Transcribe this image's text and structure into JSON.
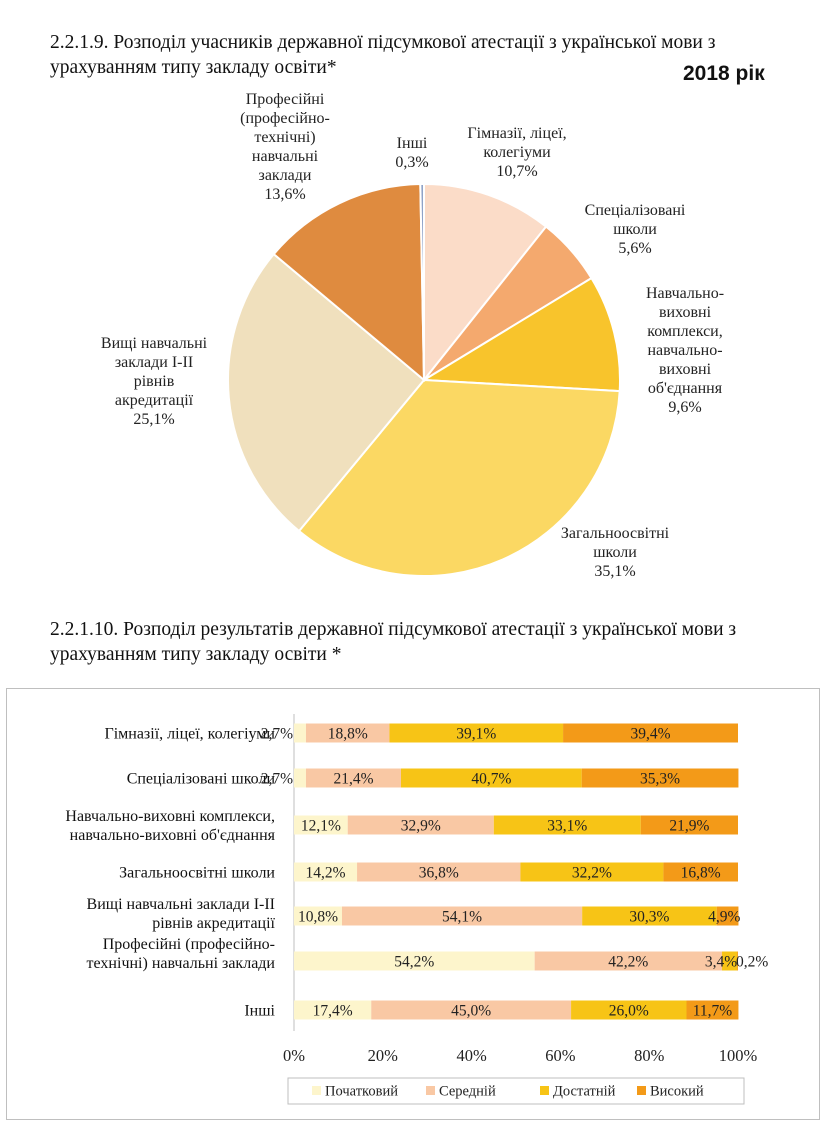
{
  "page": {
    "title1": "2.2.1.9. Розподіл учасників державної підсумкової атестації з української мови з урахуванням типу закладу освіти*",
    "year": "2018 рік",
    "title2": "2.2.1.10. Розподіл результатів державної підсумкової атестації з української мови з урахуванням типу закладу освіти *"
  },
  "chart_data": [
    {
      "type": "pie",
      "title": "2.2.1.9. Розподіл учасників державної підсумкової атестації з української мови з урахуванням типу закладу освіти*",
      "start": "12 o'clock, clockwise",
      "slices": [
        {
          "name": "Гімназії, ліцеї, колегіуми",
          "value": 10.7,
          "label": [
            "Гімназії, ліцеї,",
            "колегіуми",
            "10,7%"
          ],
          "color": "#fbdcc8"
        },
        {
          "name": "Спеціалізовані школи",
          "value": 5.6,
          "label": [
            "Спеціалізовані",
            "школи",
            "5,6%"
          ],
          "color": "#f4a96e"
        },
        {
          "name": "Навчально-виховні комплекси, навчально-виховні об'єднання",
          "value": 9.6,
          "label": [
            "Навчально-",
            "виховні",
            "комплекси,",
            "навчально-",
            "виховні",
            "об'єднання",
            "9,6%"
          ],
          "color": "#f8c42c"
        },
        {
          "name": "Загальноосвітні школи",
          "value": 35.1,
          "label": [
            "Загальноосвітні",
            "школи",
            "35,1%"
          ],
          "color": "#fbd863"
        },
        {
          "name": "Вищі навчальні заклади І-ІІ рівнів акредитації",
          "value": 25.1,
          "label": [
            "Вищі навчальні",
            "заклади І-ІІ",
            "рівнів",
            "акредитації",
            "25,1%"
          ],
          "color": "#f0e0bd"
        },
        {
          "name": "Професійні (професійно-технічні) навчальні заклади",
          "value": 13.6,
          "label": [
            "Професійні",
            "(професійно-",
            "технічні)",
            "навчальні",
            "заклади",
            "13,6%"
          ],
          "color": "#df8b3f"
        },
        {
          "name": "Інші",
          "value": 0.3,
          "label": [
            "Інші",
            "0,3%"
          ],
          "color": "#8fa3c7"
        }
      ]
    },
    {
      "type": "bar",
      "orientation": "horizontal",
      "stacked": "100%",
      "title": "2.2.1.10. Розподіл результатів державної підсумкової атестації з української мови з урахуванням типу закладу освіти *",
      "categories": [
        {
          "lines": [
            "Гімназії, ліцеї, колегіуми"
          ]
        },
        {
          "lines": [
            "Спеціалізовані школи"
          ]
        },
        {
          "lines": [
            "Навчально-виховні комплекси,",
            "навчально-виховні об'єднання"
          ]
        },
        {
          "lines": [
            "Загальноосвітні школи"
          ]
        },
        {
          "lines": [
            "Вищі навчальні заклади І-ІІ",
            "рівнів акредитації"
          ]
        },
        {
          "lines": [
            "Професійні (професійно-",
            "технічні) навчальні заклади"
          ]
        },
        {
          "lines": [
            "Інші"
          ]
        }
      ],
      "series": [
        {
          "name": "Початковий",
          "color": "#fdf5cc",
          "values": [
            2.7,
            2.7,
            12.1,
            14.2,
            10.8,
            54.2,
            17.4
          ],
          "labels": [
            "2,7%",
            "2,7%",
            "12,1%",
            "14,2%",
            "10,8%",
            "54,2%",
            "17,4%"
          ]
        },
        {
          "name": "Середній",
          "color": "#f9c8a4",
          "values": [
            18.8,
            21.4,
            32.9,
            36.8,
            54.1,
            42.2,
            45.0
          ],
          "labels": [
            "18,8%",
            "21,4%",
            "32,9%",
            "36,8%",
            "54,1%",
            "42,2%",
            "45,0%"
          ]
        },
        {
          "name": "Достатній",
          "color": "#f7c416",
          "values": [
            39.1,
            40.7,
            33.1,
            32.2,
            30.3,
            3.4,
            26.0
          ],
          "labels": [
            "39,1%",
            "40,7%",
            "33,1%",
            "32,2%",
            "30,3%",
            "3,4%",
            "26,0%"
          ]
        },
        {
          "name": "Високий",
          "color": "#f39a18",
          "values": [
            39.4,
            35.3,
            21.9,
            16.8,
            4.9,
            0.2,
            11.7
          ],
          "labels": [
            "39,4%",
            "35,3%",
            "21,9%",
            "16,8%",
            "4,9%",
            "0,2%",
            "11,7%"
          ]
        }
      ],
      "xlim": [
        0,
        100
      ],
      "xticks": [
        "0%",
        "20%",
        "40%",
        "60%",
        "80%",
        "100%"
      ],
      "legend": "bottom"
    }
  ]
}
